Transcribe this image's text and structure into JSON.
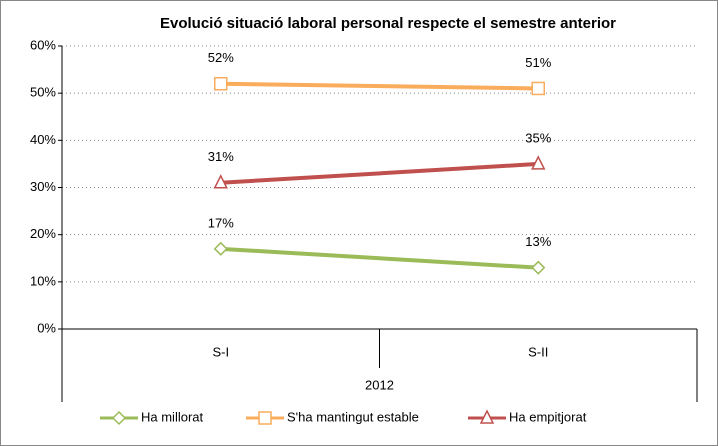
{
  "chart_data": {
    "type": "line",
    "title": "Evolució situació laboral personal respecte el semestre anterior",
    "categories": [
      "S-I",
      "S-II"
    ],
    "category_group": "2012",
    "series": [
      {
        "name": "Ha millorat",
        "color": "#9bbb59",
        "marker": "diamond",
        "values": [
          17,
          13
        ],
        "value_labels": [
          "17%",
          "13%"
        ]
      },
      {
        "name": "S'ha mantingut estable",
        "color": "#f9ac5b",
        "marker": "square",
        "values": [
          52,
          51
        ],
        "value_labels": [
          "52%",
          "51%"
        ]
      },
      {
        "name": "Ha empitjorat",
        "color": "#c0504d",
        "marker": "triangle",
        "values": [
          31,
          35
        ],
        "value_labels": [
          "31%",
          "35%"
        ]
      }
    ],
    "ylim": [
      0,
      60
    ],
    "yticks": [
      {
        "value": 0,
        "label": "0%"
      },
      {
        "value": 10,
        "label": "10%"
      },
      {
        "value": 20,
        "label": "20%"
      },
      {
        "value": 30,
        "label": "30%"
      },
      {
        "value": 40,
        "label": "40%"
      },
      {
        "value": 50,
        "label": "50%"
      },
      {
        "value": 60,
        "label": "60%"
      }
    ],
    "grid": true,
    "legend": "bottom"
  }
}
